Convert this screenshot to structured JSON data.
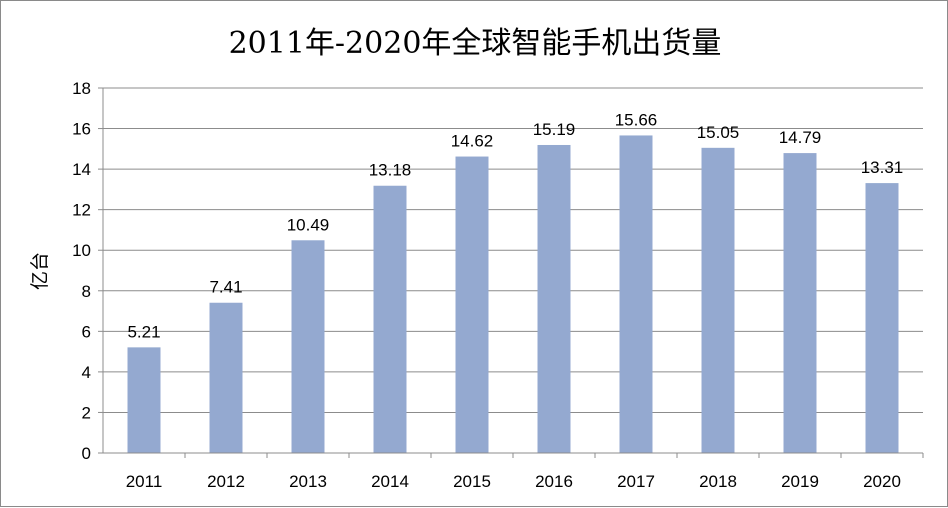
{
  "chart_data": {
    "type": "bar",
    "title": "2011年-2020年全球智能手机出货量",
    "xlabel": "",
    "ylabel": "亿台",
    "categories": [
      "2011",
      "2012",
      "2013",
      "2014",
      "2015",
      "2016",
      "2017",
      "2018",
      "2019",
      "2020"
    ],
    "values": [
      5.21,
      7.41,
      10.49,
      13.18,
      14.62,
      15.19,
      15.66,
      15.05,
      14.79,
      13.31
    ],
    "value_labels": [
      "5.21",
      "7.41",
      "10.49",
      "13.18",
      "14.62",
      "15.19",
      "15.66",
      "15.05",
      "14.79",
      "13.31"
    ],
    "ylim": [
      0,
      18
    ],
    "yticks": [
      "0",
      "2",
      "4",
      "6",
      "8",
      "10",
      "12",
      "14",
      "16",
      "18"
    ],
    "grid": true,
    "legend": "none",
    "bar_color": "#94a9d0",
    "grid_color": "#8c8c8c"
  }
}
